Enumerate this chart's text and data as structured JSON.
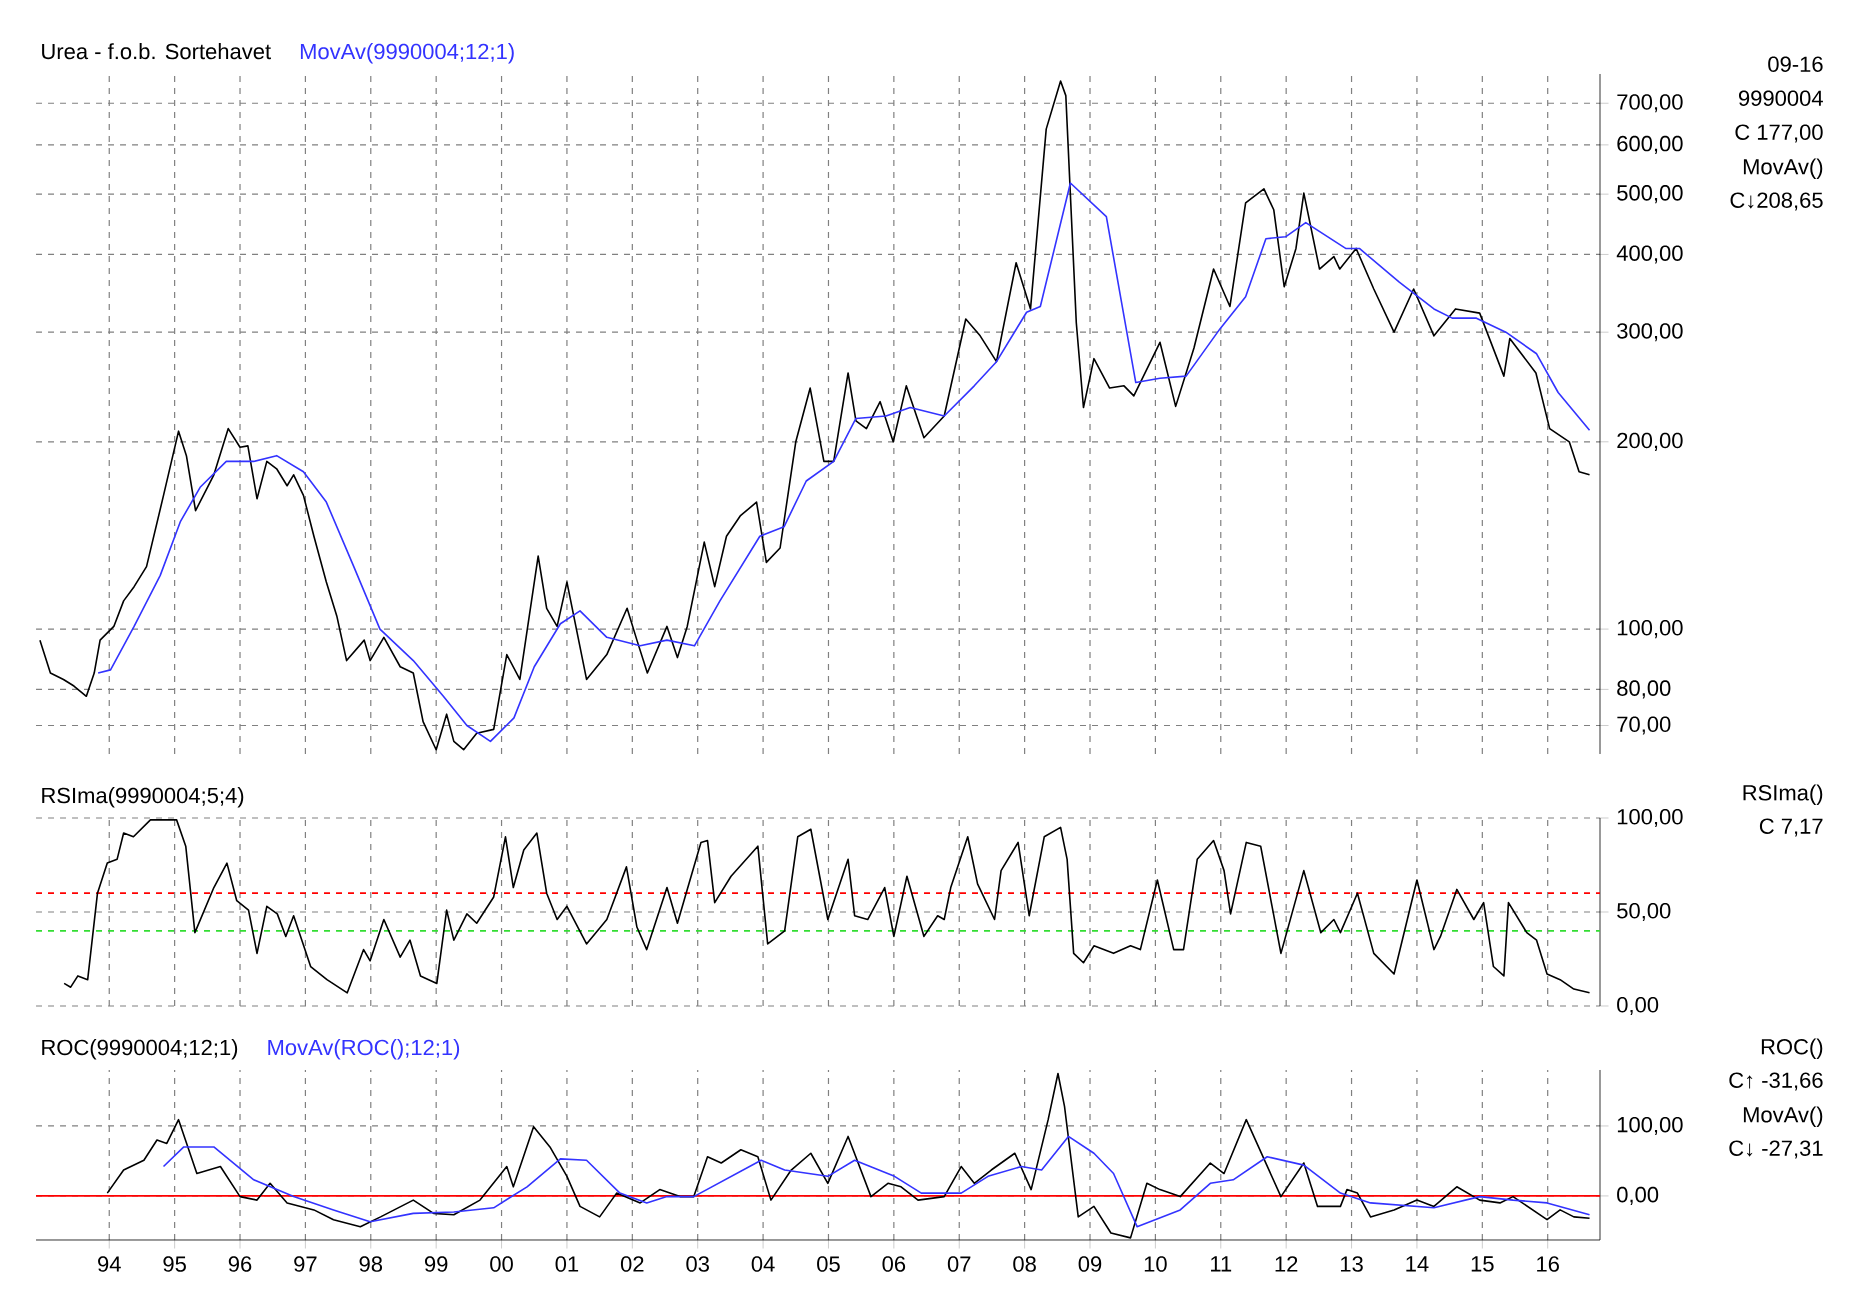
{
  "chart_data": [
    {
      "type": "line",
      "title": "Urea - f.o.b. Sortehavet",
      "log": "y",
      "grid": true,
      "tick_labels": "y",
      "xlim": [
        1992.88,
        2016.8
      ],
      "xticks": [
        {
          "value": 1994,
          "label": null
        },
        {
          "value": 1995,
          "label": null
        },
        {
          "value": 1996,
          "label": null
        },
        {
          "value": 1997,
          "label": null
        },
        {
          "value": 1998,
          "label": null
        },
        {
          "value": 1999,
          "label": null
        },
        {
          "value": 2000,
          "label": null
        },
        {
          "value": 2001,
          "label": null
        },
        {
          "value": 2002,
          "label": null
        },
        {
          "value": 2003,
          "label": null
        },
        {
          "value": 2004,
          "label": null
        },
        {
          "value": 2005,
          "label": null
        },
        {
          "value": 2006,
          "label": null
        },
        {
          "value": 2007,
          "label": null
        },
        {
          "value": 2008,
          "label": null
        },
        {
          "value": 2009,
          "label": null
        },
        {
          "value": 2010,
          "label": null
        },
        {
          "value": 2011,
          "label": null
        },
        {
          "value": 2012,
          "label": null
        },
        {
          "value": 2013,
          "label": null
        },
        {
          "value": 2014,
          "label": null
        },
        {
          "value": 2015,
          "label": null
        },
        {
          "value": 2016,
          "label": null
        }
      ],
      "ylim": [
        63,
        780
      ],
      "yticks": [
        {
          "value": 70,
          "label": "70,00"
        },
        {
          "value": 80,
          "label": "80,00"
        },
        {
          "value": 100,
          "label": "100,00"
        },
        {
          "value": 200,
          "label": "200,00"
        },
        {
          "value": 300,
          "label": "300,00"
        },
        {
          "value": 400,
          "label": "400,00"
        },
        {
          "value": 500,
          "label": "500,00"
        },
        {
          "value": 600,
          "label": "600,00"
        },
        {
          "value": 700,
          "label": "700,00"
        }
      ],
      "annotations": [
        "09-16",
        "9990004",
        "C  177,00",
        "MovAv()",
        "C↓208,65"
      ],
      "series": [
        {
          "color": "#000000",
          "x": [
            1992.94,
            1993.1,
            1993.3,
            1993.46,
            1993.65,
            1993.77,
            1993.86,
            1994.07,
            1994.22,
            1994.38,
            1994.57,
            1994.83,
            1995.06,
            1995.18,
            1995.32,
            1995.6,
            1995.82,
            1996.0,
            1996.12,
            1996.26,
            1996.41,
            1996.56,
            1996.72,
            1996.82,
            1996.97,
            1997.13,
            1997.32,
            1997.48,
            1997.63,
            1997.9,
            1997.99,
            1998.2,
            1998.45,
            1998.65,
            1998.8,
            1999.0,
            1999.16,
            1999.27,
            1999.42,
            1999.62,
            1999.88,
            2000.08,
            2000.28,
            2000.56,
            2000.69,
            2000.85,
            2001.0,
            2001.3,
            2001.61,
            2001.92,
            2002.07,
            2002.23,
            2002.53,
            2002.69,
            2002.84,
            2003.1,
            2003.26,
            2003.44,
            2003.65,
            2003.9,
            2004.05,
            2004.26,
            2004.5,
            2004.72,
            2004.93,
            2005.08,
            2005.3,
            2005.42,
            2005.58,
            2005.79,
            2005.99,
            2006.19,
            2006.46,
            2006.77,
            2007.1,
            2007.32,
            2007.57,
            2007.87,
            2008.09,
            2008.33,
            2008.55,
            2008.63,
            2008.79,
            2008.9,
            2009.06,
            2009.3,
            2009.52,
            2009.67,
            2010.07,
            2010.31,
            2010.59,
            2010.89,
            2011.14,
            2011.38,
            2011.66,
            2011.81,
            2011.97,
            2012.15,
            2012.27,
            2012.51,
            2012.73,
            2012.82,
            2013.07,
            2013.34,
            2013.65,
            2013.95,
            2014.26,
            2014.59,
            2014.96,
            2015.33,
            2015.42,
            2015.82,
            2016.03,
            2016.33,
            2016.48,
            2016.64
          ],
          "values": [
            96,
            85,
            83,
            81,
            78,
            85,
            96,
            101,
            111,
            117,
            126,
            164,
            208,
            190,
            155,
            177,
            210,
            196,
            197,
            162,
            186,
            181,
            170,
            177,
            164,
            141,
            119,
            105,
            89,
            96,
            89,
            97,
            87,
            85,
            71,
            64,
            73,
            66,
            64,
            68,
            69,
            91,
            83,
            131,
            108,
            101,
            119,
            83,
            91,
            108,
            96,
            85,
            101,
            90,
            101,
            138,
            117,
            141,
            152,
            160,
            128,
            135,
            200,
            244,
            186,
            186,
            258,
            216,
            210,
            232,
            200,
            246,
            203,
            220,
            315,
            296,
            269,
            388,
            327,
            636,
            760,
            720,
            311,
            227,
            272,
            244,
            246,
            237,
            289,
            228,
            283,
            379,
            330,
            484,
            510,
            472,
            355,
            409,
            502,
            379,
            397,
            379,
            409,
            352,
            300,
            352,
            296,
            327,
            322,
            255,
            293,
            258,
            210,
            200,
            179,
            177
          ]
        },
        {
          "name": "MovAv(9990004;12;1)",
          "color": "#3333ff",
          "x": [
            1993.83,
            1994.02,
            1994.38,
            1994.78,
            1995.09,
            1995.39,
            1995.79,
            1996.21,
            1996.56,
            1996.97,
            1997.32,
            1997.74,
            1998.14,
            1998.65,
            1999.11,
            1999.47,
            1999.83,
            2000.19,
            2000.5,
            2000.9,
            2001.2,
            2001.61,
            2002.12,
            2002.53,
            2002.95,
            2003.34,
            2003.95,
            2004.32,
            2004.66,
            2005.08,
            2005.42,
            2005.88,
            2006.25,
            2006.77,
            2007.23,
            2007.57,
            2008.03,
            2008.24,
            2008.7,
            2009.25,
            2009.7,
            2010.07,
            2010.47,
            2010.99,
            2011.38,
            2011.69,
            2011.99,
            2012.3,
            2012.91,
            2013.12,
            2013.73,
            2014.26,
            2014.54,
            2014.91,
            2015.36,
            2015.83,
            2016.16,
            2016.64
          ],
          "values": [
            85,
            86,
            101,
            122,
            149,
            169,
            186,
            186,
            190,
            179,
            160,
            126,
            100,
            89,
            78,
            70,
            66,
            72,
            87,
            102,
            107,
            97,
            94,
            96,
            94,
            111,
            141,
            146,
            173,
            186,
            218,
            220,
            227,
            220,
            246,
            269,
            323,
            330,
            521,
            460,
            249,
            253,
            255,
            304,
            342,
            424,
            427,
            450,
            409,
            409,
            361,
            327,
            316,
            316,
            300,
            277,
            240,
            208.65
          ]
        }
      ]
    },
    {
      "type": "line",
      "title": "RSIma(9990004;5;4)",
      "grid": true,
      "tick_labels": "y",
      "xlim": [
        1992.88,
        2016.8
      ],
      "xticks": [
        {
          "value": 1994,
          "label": null
        },
        {
          "value": 1995,
          "label": null
        },
        {
          "value": 1996,
          "label": null
        },
        {
          "value": 1997,
          "label": null
        },
        {
          "value": 1998,
          "label": null
        },
        {
          "value": 1999,
          "label": null
        },
        {
          "value": 2000,
          "label": null
        },
        {
          "value": 2001,
          "label": null
        },
        {
          "value": 2002,
          "label": null
        },
        {
          "value": 2003,
          "label": null
        },
        {
          "value": 2004,
          "label": null
        },
        {
          "value": 2005,
          "label": null
        },
        {
          "value": 2006,
          "label": null
        },
        {
          "value": 2007,
          "label": null
        },
        {
          "value": 2008,
          "label": null
        },
        {
          "value": 2009,
          "label": null
        },
        {
          "value": 2010,
          "label": null
        },
        {
          "value": 2011,
          "label": null
        },
        {
          "value": 2012,
          "label": null
        },
        {
          "value": 2013,
          "label": null
        },
        {
          "value": 2014,
          "label": null
        },
        {
          "value": 2015,
          "label": null
        },
        {
          "value": 2016,
          "label": null
        }
      ],
      "ylim": [
        0,
        100
      ],
      "yticks": [
        {
          "value": 0,
          "label": "0,00"
        },
        {
          "value": 50,
          "label": "50,00"
        },
        {
          "value": 100,
          "label": "100,00"
        }
      ],
      "annotations": [
        "RSIma()",
        "C        7,17"
      ],
      "ref_lines": [
        {
          "axis": "y",
          "value": 60,
          "color": "#ff0000",
          "line_style": "dashed"
        },
        {
          "axis": "y",
          "value": 40,
          "color": "#33dd33",
          "line_style": "dashed"
        }
      ],
      "series": [
        {
          "color": "#000000",
          "x": [
            1993.31,
            1993.41,
            1993.52,
            1993.67,
            1993.82,
            1993.97,
            1994.12,
            1994.22,
            1994.37,
            1994.63,
            1995.03,
            1995.17,
            1995.31,
            1995.6,
            1995.8,
            1995.95,
            1996.13,
            1996.26,
            1996.41,
            1996.57,
            1996.7,
            1996.82,
            1997.08,
            1997.33,
            1997.64,
            1997.89,
            1997.99,
            1998.2,
            1998.45,
            1998.6,
            1998.76,
            1999.01,
            1999.16,
            1999.27,
            1999.47,
            1999.62,
            1999.88,
            2000.06,
            2000.18,
            2000.34,
            2000.54,
            2000.69,
            2000.85,
            2001.0,
            2001.3,
            2001.61,
            2001.91,
            2002.07,
            2002.22,
            2002.53,
            2002.69,
            2002.84,
            2003.05,
            2003.15,
            2003.26,
            2003.51,
            2003.92,
            2004.07,
            2004.33,
            2004.53,
            2004.73,
            2004.99,
            2005.3,
            2005.4,
            2005.6,
            2005.86,
            2006.0,
            2006.2,
            2006.46,
            2006.67,
            2006.77,
            2006.87,
            2007.13,
            2007.28,
            2007.54,
            2007.64,
            2007.9,
            2008.07,
            2008.3,
            2008.55,
            2008.65,
            2008.75,
            2008.9,
            2009.06,
            2009.36,
            2009.62,
            2009.77,
            2010.03,
            2010.28,
            2010.43,
            2010.64,
            2010.89,
            2011.05,
            2011.15,
            2011.39,
            2011.61,
            2011.92,
            2012.27,
            2012.53,
            2012.73,
            2012.83,
            2013.09,
            2013.34,
            2013.65,
            2014.0,
            2014.26,
            2014.36,
            2014.61,
            2014.87,
            2015.02,
            2015.17,
            2015.33,
            2015.4,
            2015.68,
            2015.83,
            2015.99,
            2016.19,
            2016.4,
            2016.64
          ],
          "values": [
            12,
            10,
            16,
            14,
            60,
            76,
            78,
            92,
            90,
            99,
            99,
            85,
            39,
            63,
            76,
            56,
            51,
            28,
            53,
            49,
            37,
            48,
            21,
            14,
            7,
            30,
            24,
            46,
            26,
            35,
            16,
            12,
            51,
            35,
            49,
            44,
            58,
            90,
            63,
            83,
            92,
            60,
            46,
            53,
            33,
            46,
            74,
            42,
            30,
            63,
            44,
            62,
            87,
            88,
            55,
            69,
            85,
            33,
            40,
            90,
            94,
            46,
            78,
            48,
            46,
            63,
            37,
            69,
            37,
            48,
            46,
            63,
            90,
            65,
            46,
            72,
            87,
            48,
            90,
            95,
            78,
            28,
            23,
            32,
            28,
            32,
            30,
            67,
            30,
            30,
            78,
            88,
            72,
            49,
            87,
            85,
            28,
            72,
            39,
            46,
            39,
            60,
            28,
            17,
            67,
            30,
            37,
            62,
            46,
            55,
            21,
            16,
            55,
            39,
            35,
            17,
            14,
            9,
            7
          ]
        }
      ]
    },
    {
      "type": "line",
      "title": "ROC(9990004;12;1)",
      "grid": true,
      "xlim": [
        1992.88,
        2016.8
      ],
      "xticks": [
        {
          "value": 1994,
          "label": "94"
        },
        {
          "value": 1995,
          "label": "95"
        },
        {
          "value": 1996,
          "label": "96"
        },
        {
          "value": 1997,
          "label": "97"
        },
        {
          "value": 1998,
          "label": "98"
        },
        {
          "value": 1999,
          "label": "99"
        },
        {
          "value": 2000,
          "label": "00"
        },
        {
          "value": 2001,
          "label": "01"
        },
        {
          "value": 2002,
          "label": "02"
        },
        {
          "value": 2003,
          "label": "03"
        },
        {
          "value": 2004,
          "label": "04"
        },
        {
          "value": 2005,
          "label": "05"
        },
        {
          "value": 2006,
          "label": "06"
        },
        {
          "value": 2007,
          "label": "07"
        },
        {
          "value": 2008,
          "label": "08"
        },
        {
          "value": 2009,
          "label": "09"
        },
        {
          "value": 2010,
          "label": "10"
        },
        {
          "value": 2011,
          "label": "11"
        },
        {
          "value": 2012,
          "label": "12"
        },
        {
          "value": 2013,
          "label": "13"
        },
        {
          "value": 2014,
          "label": "14"
        },
        {
          "value": 2015,
          "label": "15"
        },
        {
          "value": 2016,
          "label": "16"
        }
      ],
      "ylim": [
        -63,
        180
      ],
      "yticks": [
        {
          "value": 0,
          "label": "0,00"
        },
        {
          "value": 100,
          "label": "100,00"
        }
      ],
      "annotations": [
        "ROC()",
        "C↑ -31,66",
        "MovAv()",
        "C↓ -27,31"
      ],
      "ref_lines": [
        {
          "axis": "y",
          "value": 0,
          "color": "#ff0000",
          "line_style": "solid"
        }
      ],
      "series": [
        {
          "color": "#000000",
          "x": [
            1993.97,
            1994.22,
            1994.53,
            1994.73,
            1994.88,
            1995.06,
            1995.34,
            1995.7,
            1996.0,
            1996.26,
            1996.46,
            1996.72,
            1997.13,
            1997.43,
            1997.84,
            1998.15,
            1998.65,
            1998.96,
            1999.27,
            1999.67,
            2000.08,
            2000.18,
            2000.49,
            2000.74,
            2001.0,
            2001.2,
            2001.5,
            2001.76,
            2002.12,
            2002.42,
            2002.73,
            2002.94,
            2003.15,
            2003.36,
            2003.66,
            2003.92,
            2004.12,
            2004.43,
            2004.73,
            2004.99,
            2005.3,
            2005.65,
            2005.91,
            2006.11,
            2006.37,
            2006.77,
            2007.03,
            2007.23,
            2007.49,
            2007.85,
            2008.1,
            2008.36,
            2008.51,
            2008.61,
            2008.82,
            2009.06,
            2009.32,
            2009.62,
            2009.87,
            2010.07,
            2010.38,
            2010.84,
            2011.05,
            2011.39,
            2011.92,
            2012.27,
            2012.48,
            2012.83,
            2012.93,
            2013.09,
            2013.29,
            2013.65,
            2014.0,
            2014.26,
            2014.61,
            2014.96,
            2015.27,
            2015.47,
            2015.99,
            2016.19,
            2016.4,
            2016.64
          ],
          "values": [
            4,
            37,
            51,
            80,
            75,
            109,
            32,
            42,
            -1,
            -6,
            18,
            -10,
            -20,
            -34,
            -44,
            -30,
            -6,
            -25,
            -27,
            -6,
            42,
            13,
            99,
            70,
            28,
            -15,
            -30,
            4,
            -10,
            9,
            -1,
            -1,
            56,
            47,
            66,
            56,
            -6,
            37,
            61,
            18,
            85,
            -1,
            18,
            13,
            -6,
            -1,
            42,
            18,
            37,
            61,
            9,
            109,
            175,
            128,
            -30,
            -15,
            -53,
            -60,
            18,
            9,
            -1,
            47,
            32,
            109,
            -1,
            47,
            -15,
            -15,
            9,
            4,
            -30,
            -20,
            -6,
            -15,
            13,
            -6,
            -10,
            -1,
            -34,
            -20,
            -30,
            -32
          ]
        },
        {
          "name": "MovAv(ROC();12;1)",
          "color": "#3333ff",
          "x": [
            1994.83,
            1995.14,
            1995.6,
            1996.21,
            1996.82,
            1997.43,
            1997.99,
            1998.65,
            1999.27,
            1999.88,
            2000.39,
            2000.9,
            2001.3,
            2001.81,
            2002.22,
            2002.53,
            2002.94,
            2003.97,
            2004.33,
            2004.99,
            2005.4,
            2006.01,
            2006.42,
            2007.03,
            2007.44,
            2007.95,
            2008.26,
            2008.67,
            2009.06,
            2009.36,
            2009.72,
            2010.38,
            2010.84,
            2011.19,
            2011.71,
            2012.27,
            2012.83,
            2013.29,
            2014.26,
            2014.96,
            2015.47,
            2015.99,
            2016.64
          ],
          "values": [
            42,
            70,
            70,
            23,
            -1,
            -20,
            -37,
            -25,
            -23,
            -17,
            13,
            53,
            51,
            4,
            -10,
            -1,
            -1,
            51,
            37,
            28,
            51,
            28,
            4,
            4,
            28,
            42,
            37,
            85,
            61,
            32,
            -44,
            -20,
            18,
            23,
            56,
            44,
            4,
            -10,
            -17,
            -1,
            -6,
            -10,
            -27
          ]
        }
      ]
    }
  ]
}
